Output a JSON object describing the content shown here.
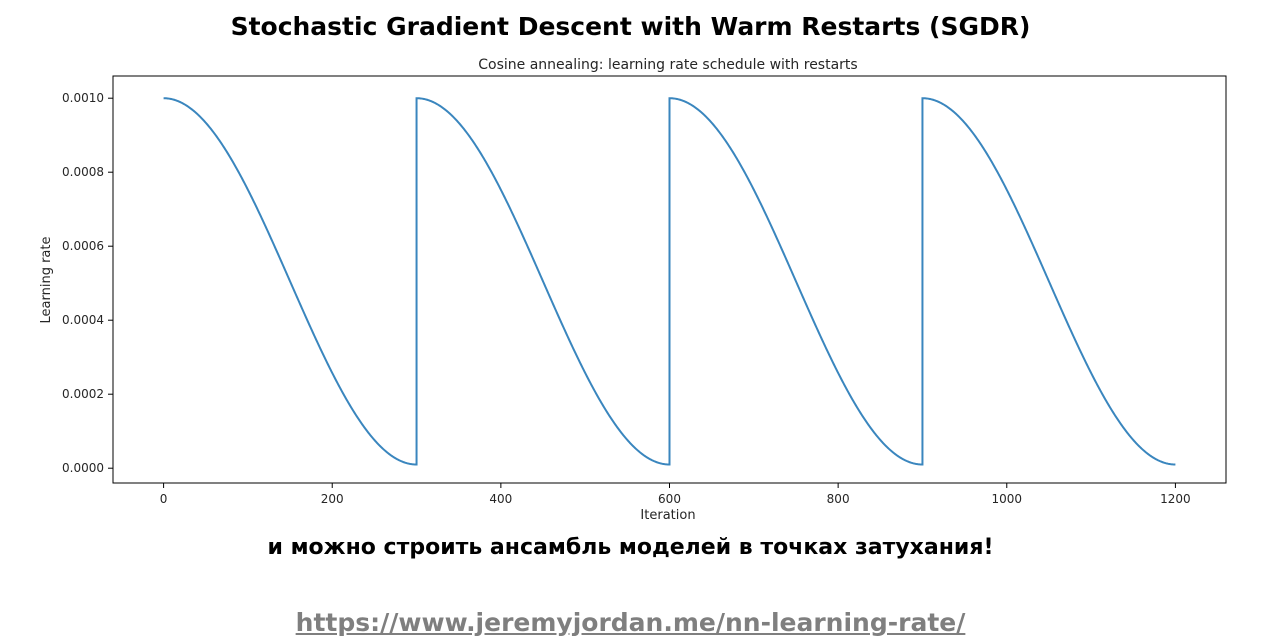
{
  "slide": {
    "title": "Stochastic Gradient Descent with Warm Restarts (SGDR)",
    "caption": "и можно строить ансамбль моделей в точках затухания!",
    "link": "https://www.jeremyjordan.me/nn-learning-rate/"
  },
  "chart_data": {
    "type": "line",
    "title": "Cosine annealing: learning rate schedule with restarts",
    "xlabel": "Iteration",
    "ylabel": "Learning rate",
    "xlim": [
      -60,
      1260
    ],
    "ylim": [
      -4e-05,
      0.00106
    ],
    "xticks": [
      0,
      200,
      400,
      600,
      800,
      1000,
      1200
    ],
    "yticks": [
      "0.0000",
      "0.0002",
      "0.0004",
      "0.0006",
      "0.0008",
      "0.0010"
    ],
    "grid": false,
    "series": [
      {
        "color": "#3a86be",
        "restart_period": 300,
        "lr_max": 0.001,
        "lr_min": 1e-05,
        "x_range": [
          0,
          1200
        ]
      }
    ]
  }
}
